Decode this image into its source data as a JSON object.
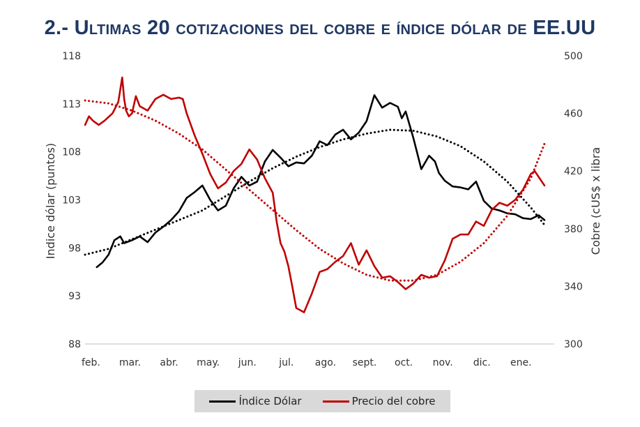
{
  "title": "2.- Ultimas 20 cotizaciones del cobre e índice dólar de EE.UU",
  "colors": {
    "dollar": "#000000",
    "copper": "#c00000",
    "title": "#1f3864",
    "legend_bg": "#d9d9d9"
  },
  "chart_data": {
    "type": "line",
    "xlabel": "",
    "ylabel_left": "Indice dólar (puntos)",
    "ylabel_right": "Cobre (cUS$ x libra",
    "categories": [
      "feb.",
      "mar.",
      "abr.",
      "may.",
      "jun.",
      "jul.",
      "ago.",
      "sept.",
      "oct.",
      "nov.",
      "dic.",
      "ene."
    ],
    "x_range": [
      0,
      12
    ],
    "ylim_left": [
      88,
      118
    ],
    "ylim_right": [
      300,
      500
    ],
    "yticks_left": [
      "118",
      "113",
      "108",
      "103",
      "98",
      "93",
      "88"
    ],
    "yticks_right": [
      "500",
      "460",
      "420",
      "380",
      "340",
      "300"
    ],
    "grid": false,
    "legend_position": "bottom",
    "series": [
      {
        "name": "Índice Dólar",
        "axis": "left",
        "color": "#000000",
        "style": "solid",
        "x": [
          0.3,
          0.45,
          0.6,
          0.75,
          0.9,
          1.0,
          1.2,
          1.4,
          1.6,
          1.8,
          2.0,
          2.2,
          2.4,
          2.6,
          2.8,
          3.0,
          3.2,
          3.4,
          3.6,
          3.8,
          4.0,
          4.2,
          4.4,
          4.6,
          4.8,
          5.0,
          5.2,
          5.4,
          5.6,
          5.8,
          6.0,
          6.2,
          6.4,
          6.6,
          6.8,
          7.0,
          7.2,
          7.4,
          7.6,
          7.8,
          8.0,
          8.1,
          8.2,
          8.4,
          8.6,
          8.8,
          8.95,
          9.05,
          9.2,
          9.4,
          9.6,
          9.8,
          10.0,
          10.2,
          10.4,
          10.6,
          10.8,
          11.0,
          11.2,
          11.4,
          11.6,
          11.75
        ],
        "values": [
          96.0,
          96.5,
          97.3,
          98.8,
          99.2,
          98.5,
          98.8,
          99.2,
          98.6,
          99.6,
          100.2,
          100.9,
          101.8,
          103.2,
          103.8,
          104.5,
          103.0,
          101.9,
          102.4,
          104.2,
          105.4,
          104.5,
          104.9,
          107.0,
          108.2,
          107.4,
          106.5,
          106.9,
          106.8,
          107.6,
          109.1,
          108.7,
          109.8,
          110.3,
          109.3,
          110.0,
          111.2,
          113.9,
          112.6,
          113.1,
          112.7,
          111.5,
          112.2,
          109.4,
          106.2,
          107.6,
          107.0,
          105.8,
          105.0,
          104.4,
          104.3,
          104.1,
          104.9,
          102.9,
          102.1,
          101.9,
          101.6,
          101.5,
          101.1,
          101.0,
          101.4,
          100.9
        ]
      },
      {
        "name": "Precio del cobre",
        "axis": "right",
        "color": "#c00000",
        "style": "solid",
        "x": [
          0.0,
          0.1,
          0.2,
          0.35,
          0.5,
          0.7,
          0.85,
          0.95,
          1.0,
          1.05,
          1.12,
          1.2,
          1.3,
          1.4,
          1.6,
          1.8,
          2.0,
          2.2,
          2.4,
          2.5,
          2.6,
          2.8,
          3.0,
          3.2,
          3.4,
          3.6,
          3.8,
          4.0,
          4.2,
          4.4,
          4.6,
          4.8,
          4.9,
          5.0,
          5.1,
          5.2,
          5.3,
          5.4,
          5.6,
          5.8,
          6.0,
          6.2,
          6.4,
          6.6,
          6.8,
          7.0,
          7.2,
          7.4,
          7.6,
          7.8,
          8.0,
          8.2,
          8.4,
          8.6,
          8.8,
          9.0,
          9.2,
          9.4,
          9.6,
          9.8,
          10.0,
          10.2,
          10.4,
          10.6,
          10.8,
          11.0,
          11.2,
          11.4,
          11.5,
          11.6,
          11.75
        ],
        "values": [
          452,
          458,
          455,
          452,
          455,
          460,
          468,
          485,
          470,
          462,
          458,
          460,
          472,
          465,
          462,
          470,
          473,
          470,
          471,
          470,
          460,
          445,
          432,
          418,
          408,
          412,
          420,
          425,
          435,
          428,
          415,
          405,
          385,
          370,
          364,
          354,
          340,
          325,
          322,
          335,
          350,
          352,
          357,
          361,
          370,
          355,
          365,
          354,
          346,
          347,
          343,
          338,
          342,
          348,
          346,
          347,
          358,
          373,
          376,
          376,
          385,
          382,
          393,
          398,
          396,
          400,
          407,
          418,
          420,
          416,
          410
        ]
      },
      {
        "name": "",
        "axis": "left",
        "color": "#000000",
        "style": "dotted",
        "x": [
          0.0,
          0.6,
          1.2,
          1.8,
          2.4,
          3.0,
          3.6,
          4.2,
          4.8,
          5.4,
          6.0,
          6.6,
          7.2,
          7.8,
          8.4,
          9.0,
          9.6,
          10.2,
          10.8,
          11.4,
          11.75
        ],
        "values": [
          97.3,
          97.9,
          98.9,
          99.9,
          100.9,
          101.9,
          103.4,
          104.9,
          106.3,
          107.5,
          108.5,
          109.3,
          109.9,
          110.3,
          110.2,
          109.6,
          108.6,
          107.0,
          104.9,
          102.2,
          100.4
        ]
      },
      {
        "name": "",
        "axis": "right",
        "color": "#c00000",
        "style": "dotted",
        "x": [
          0.0,
          0.6,
          1.2,
          1.8,
          2.4,
          3.0,
          3.6,
          4.2,
          4.8,
          5.4,
          6.0,
          6.6,
          7.2,
          7.8,
          8.4,
          9.0,
          9.6,
          10.2,
          10.8,
          11.4,
          11.75
        ],
        "values": [
          469,
          467,
          462,
          455,
          446,
          435,
          421,
          407,
          393,
          379,
          366,
          356,
          348,
          344,
          344,
          348,
          357,
          370,
          389,
          415,
          439
        ]
      }
    ]
  }
}
